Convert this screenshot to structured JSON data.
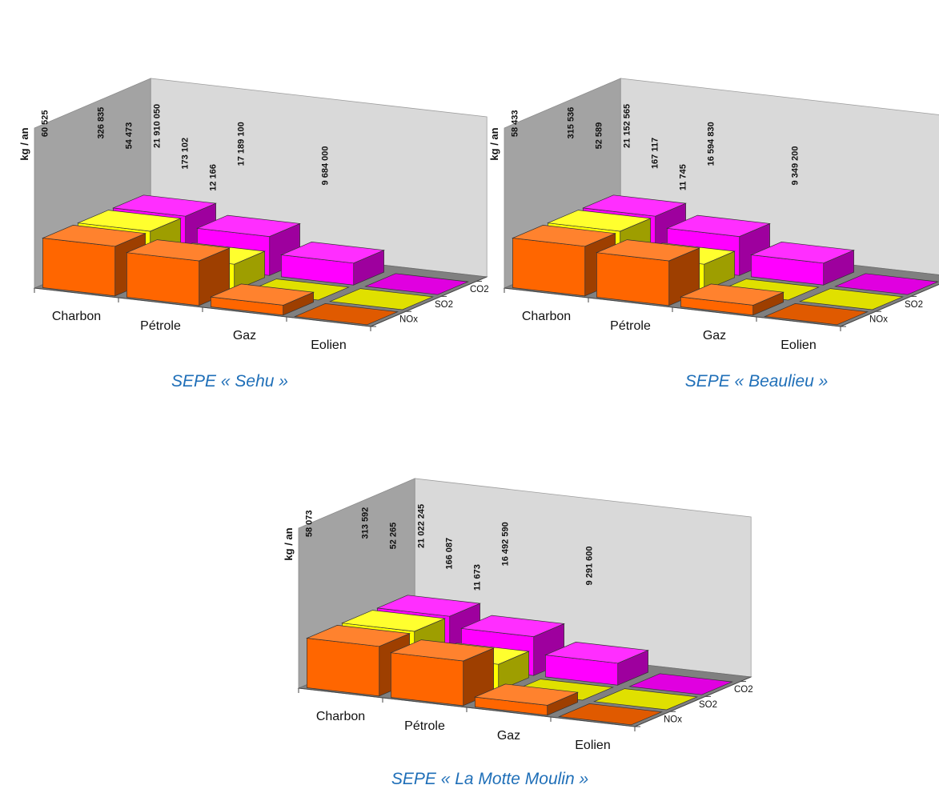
{
  "chart_data": [
    {
      "type": "bar",
      "title": "SEPE « Sehu »",
      "ylabel": "kg / an",
      "categories": [
        "Charbon",
        "Pétrole",
        "Gaz",
        "Eolien"
      ],
      "series": [
        {
          "name": "NOx",
          "values": [
            60525,
            54473,
            12166,
            0
          ],
          "labels": [
            "60 525",
            "54 473",
            "12 166",
            ""
          ]
        },
        {
          "name": "SO2",
          "values": [
            326835,
            173102,
            0,
            0
          ],
          "labels": [
            "326 835",
            "173 102",
            "",
            ""
          ]
        },
        {
          "name": "CO2",
          "values": [
            21910050,
            17189100,
            9684000,
            0
          ],
          "labels": [
            "21 910 050",
            "17 189 100",
            "9 684 000",
            ""
          ]
        }
      ],
      "colors": {
        "NOx": "#ff6600",
        "SO2": "#ffff00",
        "CO2": "#ff00ff"
      }
    },
    {
      "type": "bar",
      "title": "SEPE « Beaulieu »",
      "ylabel": "kg / an",
      "categories": [
        "Charbon",
        "Pétrole",
        "Gaz",
        "Eolien"
      ],
      "series": [
        {
          "name": "NOx",
          "values": [
            58433,
            52589,
            11745,
            0
          ],
          "labels": [
            "58 433",
            "52 589",
            "11 745",
            ""
          ]
        },
        {
          "name": "SO2",
          "values": [
            315536,
            167117,
            0,
            0
          ],
          "labels": [
            "315 536",
            "167 117",
            "",
            ""
          ]
        },
        {
          "name": "CO2",
          "values": [
            21152565,
            16594830,
            9349200,
            0
          ],
          "labels": [
            "21 152 565",
            "16 594 830",
            "9 349 200",
            ""
          ]
        }
      ],
      "colors": {
        "NOx": "#ff6600",
        "SO2": "#ffff00",
        "CO2": "#ff00ff"
      }
    },
    {
      "type": "bar",
      "title": "SEPE « La Motte Moulin »",
      "ylabel": "kg / an",
      "categories": [
        "Charbon",
        "Pétrole",
        "Gaz",
        "Eolien"
      ],
      "series": [
        {
          "name": "NOx",
          "values": [
            58073,
            52265,
            11673,
            0
          ],
          "labels": [
            "58 073",
            "52 265",
            "11 673",
            ""
          ]
        },
        {
          "name": "SO2",
          "values": [
            313592,
            166087,
            0,
            0
          ],
          "labels": [
            "313 592",
            "166 087",
            "",
            ""
          ]
        },
        {
          "name": "CO2",
          "values": [
            21022245,
            16492590,
            9291600,
            0
          ],
          "labels": [
            "21 022 245",
            "16 492 590",
            "9 291 600",
            ""
          ]
        }
      ],
      "colors": {
        "NOx": "#ff6600",
        "SO2": "#ffff00",
        "CO2": "#ff00ff"
      }
    }
  ]
}
